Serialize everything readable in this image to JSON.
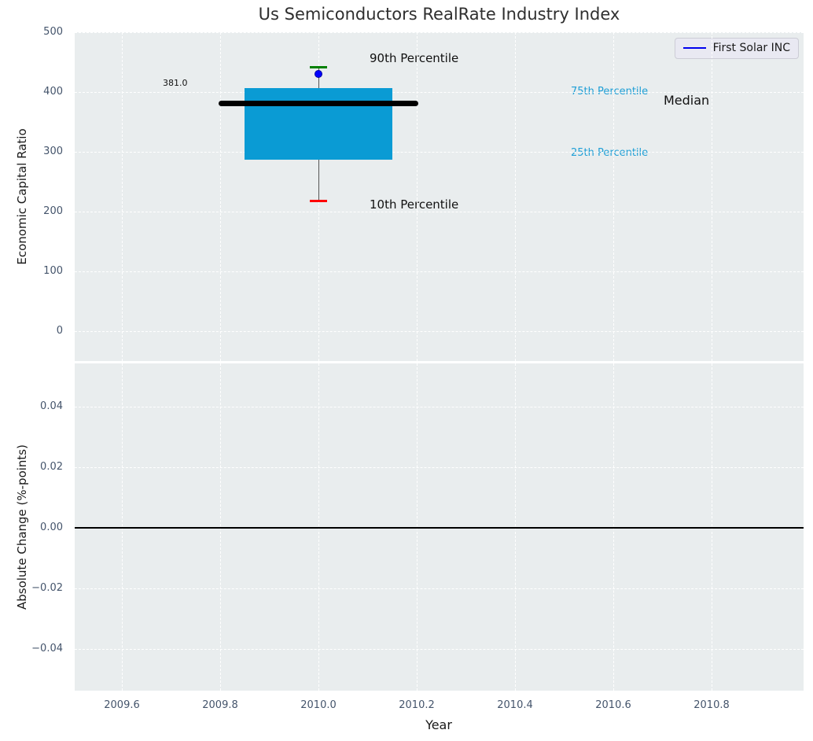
{
  "figure": {
    "title": "Us Semiconductors RealRate Industry Index"
  },
  "legend": {
    "label": "First Solar INC"
  },
  "colors": {
    "box_fill": "#0a9bd4",
    "median_line": "#000000",
    "p90_cap": "#008000",
    "p10_cap": "#ff0000",
    "company_dot": "#0000ff",
    "whisker": "#555555",
    "percentile_text": "#1f9fd6",
    "legend_line": "#0000ee",
    "axes_background": "#e9edee",
    "tick_text": "#44546b",
    "zero_line": "#000000"
  },
  "chart_data": [
    {
      "type": "boxplot",
      "title": "Us Semiconductors RealRate Industry Index",
      "ylabel": "Economic Capital Ratio",
      "ylim": [
        -52,
        500
      ],
      "xlim": [
        2009.5,
        2010.99
      ],
      "grid": "white dashed, on",
      "legend": {
        "entries": [
          "First Solar INC"
        ],
        "position": "upper right"
      },
      "yticks": [
        {
          "v": 0,
          "label": "0"
        },
        {
          "v": 100,
          "label": "100"
        },
        {
          "v": 200,
          "label": "200"
        },
        {
          "v": 300,
          "label": "300"
        },
        {
          "v": 400,
          "label": "400"
        },
        {
          "v": 500,
          "label": "500"
        }
      ],
      "series": {
        "name": "First Solar INC",
        "x": 2010.0,
        "median": 381.0,
        "median_label": "381.0",
        "q1": 287,
        "q3": 407,
        "p10": 218,
        "p90": 442,
        "company_value": 430,
        "box_halfwidth_years": 0.15,
        "median_halfwidth_years": 0.2,
        "cap_halfwidth_years": 0.017
      },
      "annotations": {
        "p90": "90th Percentile",
        "p10": "10th Percentile",
        "p75": "75th Percentile",
        "p25": "25th Percentile",
        "median": "Median"
      }
    },
    {
      "type": "line",
      "ylabel": "Absolute Change (%-points)",
      "xlabel": "Year",
      "ylim": [
        -0.054,
        0.054
      ],
      "grid": "white dashed, on",
      "zero_line": 0.0,
      "yticks": [
        {
          "v": 0.04,
          "label": "0.04"
        },
        {
          "v": 0.02,
          "label": "0.02"
        },
        {
          "v": 0.0,
          "label": "0.00"
        },
        {
          "v": -0.02,
          "label": "−0.02"
        },
        {
          "v": -0.04,
          "label": "−0.04"
        }
      ],
      "xticks": [
        {
          "v": 2009.6,
          "label": "2009.6"
        },
        {
          "v": 2009.8,
          "label": "2009.8"
        },
        {
          "v": 2010.0,
          "label": "2010.0"
        },
        {
          "v": 2010.2,
          "label": "2010.2"
        },
        {
          "v": 2010.4,
          "label": "2010.4"
        },
        {
          "v": 2010.6,
          "label": "2010.6"
        },
        {
          "v": 2010.8,
          "label": "2010.8"
        }
      ]
    }
  ]
}
